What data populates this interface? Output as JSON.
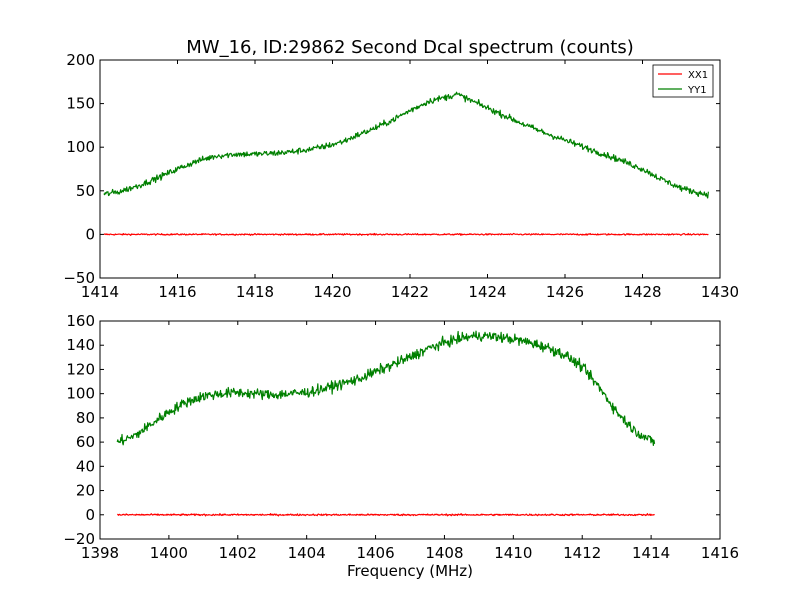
{
  "colors": {
    "XX1": "#ff0000",
    "YY1": "#008000",
    "background": "#ffffff",
    "axes": "#000000"
  },
  "chart_data": [
    {
      "type": "line",
      "title": "MW_16, ID:29862 Second Dcal spectrum (counts)",
      "xlabel": "",
      "ylabel": "",
      "xlim": [
        1414,
        1430
      ],
      "ylim": [
        -50,
        200
      ],
      "x_ticks": [
        "1414",
        "1416",
        "1418",
        "1420",
        "1422",
        "1424",
        "1426",
        "1428",
        "1430"
      ],
      "y_ticks": [
        "−50",
        "0",
        "50",
        "100",
        "150",
        "200"
      ],
      "grid": false,
      "legend_position": "top-right",
      "x_range": [
        1414.1,
        1429.7
      ],
      "series": [
        {
          "name": "XX1",
          "color": "#ff0000",
          "noise": 0.6,
          "points": [
            [
              1414.1,
              0
            ],
            [
              1429.7,
              0
            ]
          ]
        },
        {
          "name": "YY1",
          "color": "#008000",
          "noise": 2.5,
          "points": [
            [
              1414.1,
              46
            ],
            [
              1414.5,
              49
            ],
            [
              1415.0,
              56
            ],
            [
              1415.5,
              65
            ],
            [
              1416.0,
              75
            ],
            [
              1416.5,
              84
            ],
            [
              1417.0,
              90
            ],
            [
              1417.5,
              92
            ],
            [
              1418.0,
              92
            ],
            [
              1418.5,
              93
            ],
            [
              1419.0,
              95
            ],
            [
              1419.5,
              98
            ],
            [
              1420.0,
              103
            ],
            [
              1420.3,
              107
            ],
            [
              1420.6,
              113
            ],
            [
              1421.0,
              120
            ],
            [
              1421.5,
              130
            ],
            [
              1422.0,
              142
            ],
            [
              1422.5,
              153
            ],
            [
              1423.0,
              158
            ],
            [
              1423.2,
              161
            ],
            [
              1423.5,
              155
            ],
            [
              1424.0,
              145
            ],
            [
              1424.5,
              135
            ],
            [
              1425.0,
              125
            ],
            [
              1425.5,
              116
            ],
            [
              1426.0,
              108
            ],
            [
              1426.5,
              100
            ],
            [
              1427.0,
              92
            ],
            [
              1427.5,
              84
            ],
            [
              1428.0,
              75
            ],
            [
              1428.5,
              63
            ],
            [
              1429.0,
              53
            ],
            [
              1429.5,
              47
            ],
            [
              1429.7,
              46
            ]
          ]
        }
      ]
    },
    {
      "type": "line",
      "title": "",
      "xlabel": "Frequency (MHz)",
      "ylabel": "",
      "xlim": [
        1398,
        1416
      ],
      "ylim": [
        -20,
        160
      ],
      "x_ticks": [
        "1398",
        "1400",
        "1402",
        "1404",
        "1406",
        "1408",
        "1410",
        "1412",
        "1414",
        "1416"
      ],
      "y_ticks": [
        "−20",
        "0",
        "20",
        "40",
        "60",
        "80",
        "100",
        "120",
        "140",
        "160"
      ],
      "grid": false,
      "legend_position": "none",
      "x_range": [
        1398.5,
        1414.1
      ],
      "series": [
        {
          "name": "XX1",
          "color": "#ff0000",
          "noise": 0.5,
          "points": [
            [
              1398.5,
              0
            ],
            [
              1414.1,
              0
            ]
          ]
        },
        {
          "name": "YY1",
          "color": "#008000",
          "noise": 3.0,
          "points": [
            [
              1398.5,
              60
            ],
            [
              1399.0,
              65
            ],
            [
              1399.5,
              75
            ],
            [
              1400.0,
              85
            ],
            [
              1400.5,
              93
            ],
            [
              1401.0,
              98
            ],
            [
              1401.5,
              100
            ],
            [
              1402.0,
              101
            ],
            [
              1402.5,
              100
            ],
            [
              1403.0,
              99
            ],
            [
              1403.5,
              100
            ],
            [
              1404.0,
              101
            ],
            [
              1404.5,
              104
            ],
            [
              1405.0,
              108
            ],
            [
              1405.5,
              112
            ],
            [
              1406.0,
              118
            ],
            [
              1406.5,
              124
            ],
            [
              1407.0,
              130
            ],
            [
              1407.5,
              137
            ],
            [
              1408.0,
              142
            ],
            [
              1408.5,
              146
            ],
            [
              1409.0,
              148
            ],
            [
              1409.5,
              147
            ],
            [
              1410.0,
              145
            ],
            [
              1410.5,
              142
            ],
            [
              1411.0,
              138
            ],
            [
              1411.5,
              132
            ],
            [
              1412.0,
              122
            ],
            [
              1412.5,
              105
            ],
            [
              1413.0,
              85
            ],
            [
              1413.5,
              70
            ],
            [
              1414.0,
              61
            ],
            [
              1414.1,
              60
            ]
          ]
        }
      ]
    }
  ]
}
